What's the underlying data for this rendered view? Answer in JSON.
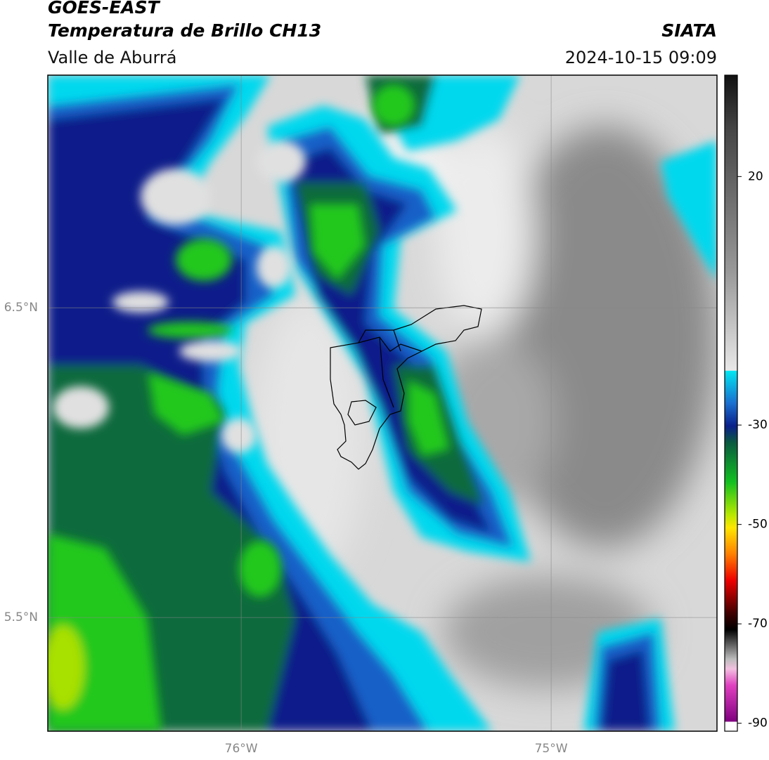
{
  "header": {
    "title": "GOES-EAST",
    "subtitle": "Temperatura de Brillo CH13",
    "region": "Valle de Aburrá",
    "source": "SIATA",
    "datetime": "2024-10-15 09:09"
  },
  "map": {
    "lon_range": [
      -76.624,
      -74.465
    ],
    "lat_range": [
      5.133,
      7.251
    ],
    "lon_ticks": [
      {
        "value": -76,
        "label": "76°W"
      },
      {
        "value": -75,
        "label": "75°W"
      }
    ],
    "lat_ticks": [
      {
        "value": 6.5,
        "label": "6.5°N"
      },
      {
        "value": 5.5,
        "label": "5.5°N"
      }
    ]
  },
  "colorbar": {
    "range": [
      -91.6,
      40.4
    ],
    "ticks": [
      20,
      -30,
      -50,
      -70,
      -90
    ]
  }
}
